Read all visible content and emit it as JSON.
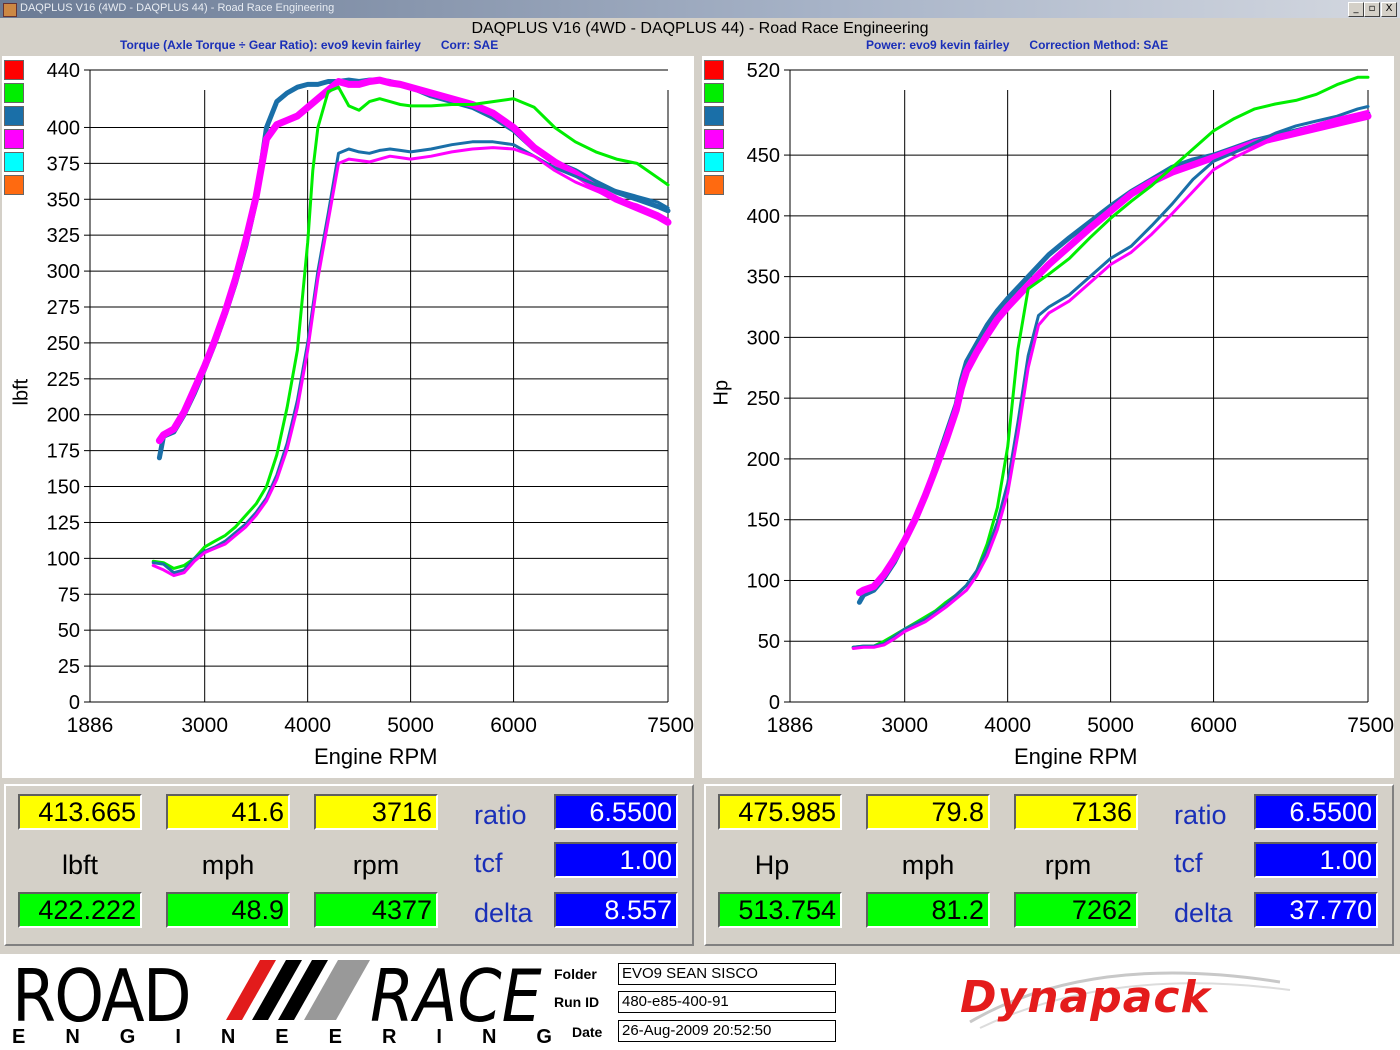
{
  "window": {
    "title": "DAQPLUS V16 (4WD - DAQPLUS 44) - Road Race Engineering",
    "title_text": "DAQPLUS V16 (4WD - DAQPLUS 44) - Road Race Engineering",
    "minimize": "_",
    "restore": "▫",
    "close": "X"
  },
  "left_panel": {
    "subtitle": "Torque (Axle Torque ÷ Gear Ratio): evo9 kevin fairley      Corr: SAE",
    "swatches": [
      "#ff0000",
      "#00ee00",
      "#1a6fa8",
      "#ff00ff",
      "#00ffff",
      "#ff6a10"
    ],
    "readout": {
      "top_values": [
        "413.665",
        "41.6",
        "3716"
      ],
      "units": [
        "lbft",
        "mph",
        "rpm"
      ],
      "bottom_values": [
        "422.222",
        "48.9",
        "4377"
      ],
      "params": [
        "ratio",
        "tcf",
        "delta"
      ],
      "param_values": [
        "6.5500",
        "1.00",
        "8.557"
      ]
    }
  },
  "right_panel": {
    "subtitle": "Power: evo9 kevin fairley      Correction Method: SAE",
    "swatches": [
      "#ff0000",
      "#00ee00",
      "#1a6fa8",
      "#ff00ff",
      "#00ffff",
      "#ff6a10"
    ],
    "readout": {
      "top_values": [
        "475.985",
        "79.8",
        "7136"
      ],
      "units": [
        "Hp",
        "mph",
        "rpm"
      ],
      "bottom_values": [
        "513.754",
        "81.2",
        "7262"
      ],
      "params": [
        "ratio",
        "tcf",
        "delta"
      ],
      "param_values": [
        "6.5500",
        "1.00",
        "37.770"
      ]
    }
  },
  "footer": {
    "logo_road": "ROAD",
    "logo_race": "RACE",
    "logo_engineering": [
      "E",
      "N",
      "G",
      "I",
      "N",
      "E",
      "E",
      "R",
      "I",
      "N",
      "G"
    ],
    "folder_label": "Folder",
    "folder_value": "EVO9 SEAN SISCO",
    "runid_label": "Run ID",
    "runid_value": "480-e85-400-91",
    "date_label": "Date",
    "date_value": "26-Aug-2009  20:52:50",
    "dynapack": "Dynapack"
  },
  "chart_data": [
    {
      "type": "line",
      "xlabel": "Engine RPM",
      "ylabel": "lbft",
      "xlim": [
        1886,
        7500
      ],
      "ylim": [
        0,
        440
      ],
      "x_ticks": [
        1886,
        3000,
        4000,
        5000,
        6000,
        7500
      ],
      "y_ticks": [
        0,
        25,
        50,
        75,
        100,
        125,
        150,
        175,
        200,
        225,
        250,
        275,
        300,
        325,
        350,
        375,
        400,
        440
      ],
      "series": [
        {
          "color": "#1a6fa8",
          "width": 5,
          "x": [
            2560,
            2600,
            2700,
            2800,
            2900,
            3000,
            3100,
            3200,
            3300,
            3400,
            3500,
            3550,
            3600,
            3700,
            3800,
            3900,
            4000,
            4100,
            4200,
            4300,
            4400,
            4500,
            4600,
            4700,
            4800,
            4900,
            5000,
            5200,
            5400,
            5600,
            5800,
            6000,
            6200,
            6400,
            6600,
            6800,
            7000,
            7200,
            7400,
            7500
          ],
          "y": [
            170,
            185,
            188,
            200,
            215,
            232,
            250,
            270,
            292,
            318,
            350,
            375,
            400,
            418,
            424,
            428,
            430,
            430,
            432,
            432,
            433,
            432,
            433,
            433,
            432,
            430,
            428,
            422,
            418,
            414,
            407,
            398,
            385,
            376,
            370,
            362,
            355,
            350,
            345,
            342
          ]
        },
        {
          "color": "#ff00ff",
          "width": 7,
          "x": [
            2560,
            2600,
            2700,
            2800,
            2900,
            3000,
            3100,
            3200,
            3300,
            3400,
            3500,
            3550,
            3600,
            3700,
            3800,
            3900,
            4000,
            4100,
            4200,
            4300,
            4400,
            4500,
            4600,
            4700,
            4800,
            4900,
            5000,
            5200,
            5400,
            5600,
            5800,
            6000,
            6200,
            6400,
            6600,
            6800,
            7000,
            7200,
            7400,
            7500
          ],
          "y": [
            182,
            186,
            190,
            202,
            218,
            234,
            252,
            272,
            295,
            322,
            352,
            372,
            392,
            402,
            405,
            408,
            414,
            420,
            426,
            432,
            430,
            430,
            432,
            433,
            431,
            430,
            428,
            424,
            420,
            416,
            410,
            400,
            386,
            376,
            368,
            358,
            350,
            344,
            338,
            334
          ]
        },
        {
          "color": "#00ee00",
          "width": 3,
          "x": [
            2500,
            2600,
            2700,
            2800,
            2900,
            3000,
            3100,
            3200,
            3300,
            3400,
            3500,
            3600,
            3700,
            3800,
            3900,
            4000,
            4050,
            4100,
            4200,
            4300,
            4400,
            4500,
            4600,
            4700,
            4800,
            4900,
            5000,
            5200,
            5400,
            5600,
            5800,
            6000,
            6200,
            6400,
            6600,
            6800,
            7000,
            7200,
            7400,
            7500
          ],
          "y": [
            98,
            97,
            93,
            95,
            100,
            108,
            112,
            116,
            122,
            130,
            138,
            150,
            172,
            205,
            245,
            320,
            370,
            400,
            425,
            428,
            415,
            412,
            418,
            420,
            418,
            416,
            415,
            415,
            416,
            416,
            418,
            420,
            414,
            400,
            390,
            383,
            378,
            375,
            365,
            360
          ]
        },
        {
          "color": "#1a6fa8",
          "width": 3,
          "x": [
            2500,
            2600,
            2700,
            2800,
            2900,
            3000,
            3100,
            3200,
            3300,
            3400,
            3500,
            3600,
            3700,
            3800,
            3900,
            4000,
            4100,
            4200,
            4300,
            4400,
            4500,
            4600,
            4700,
            4800,
            4900,
            5000,
            5200,
            5400,
            5600,
            5800,
            6000,
            6200,
            6400,
            6600,
            6800,
            7000,
            7200,
            7400,
            7500
          ],
          "y": [
            97,
            96,
            90,
            92,
            100,
            105,
            108,
            112,
            118,
            124,
            132,
            142,
            158,
            180,
            210,
            250,
            300,
            340,
            382,
            385,
            383,
            382,
            384,
            385,
            384,
            383,
            385,
            388,
            390,
            390,
            388,
            380,
            372,
            366,
            360,
            356,
            352,
            348,
            344
          ]
        },
        {
          "color": "#ff00ff",
          "width": 3,
          "x": [
            2500,
            2600,
            2700,
            2800,
            2900,
            3000,
            3100,
            3200,
            3300,
            3400,
            3500,
            3600,
            3700,
            3800,
            3900,
            4000,
            4100,
            4200,
            4300,
            4400,
            4500,
            4600,
            4700,
            4800,
            4900,
            5000,
            5200,
            5400,
            5600,
            5800,
            6000,
            6200,
            6400,
            6600,
            6800,
            7000,
            7200,
            7400,
            7500
          ],
          "y": [
            95,
            92,
            88,
            90,
            98,
            104,
            107,
            110,
            116,
            122,
            130,
            140,
            155,
            176,
            205,
            245,
            295,
            335,
            375,
            378,
            377,
            376,
            378,
            380,
            379,
            378,
            380,
            383,
            385,
            386,
            385,
            380,
            370,
            362,
            356,
            350,
            346,
            340,
            336
          ]
        }
      ]
    },
    {
      "type": "line",
      "xlabel": "Engine RPM",
      "ylabel": "Hp",
      "xlim": [
        1886,
        7500
      ],
      "ylim": [
        0,
        520
      ],
      "x_ticks": [
        1886,
        3000,
        4000,
        5000,
        6000,
        7500
      ],
      "y_ticks": [
        0,
        50,
        100,
        150,
        200,
        250,
        300,
        350,
        400,
        450,
        520
      ],
      "series": [
        {
          "color": "#1a6fa8",
          "width": 5,
          "x": [
            2560,
            2600,
            2700,
            2800,
            2900,
            3000,
            3100,
            3200,
            3300,
            3400,
            3500,
            3550,
            3600,
            3700,
            3800,
            3900,
            4000,
            4200,
            4400,
            4600,
            4800,
            5000,
            5200,
            5400,
            5600,
            5800,
            6000,
            6200,
            6400,
            6600,
            6800,
            7000,
            7200,
            7400,
            7500
          ],
          "y": [
            82,
            88,
            92,
            102,
            115,
            132,
            150,
            170,
            195,
            220,
            245,
            265,
            280,
            295,
            310,
            322,
            332,
            350,
            368,
            382,
            395,
            408,
            420,
            430,
            440,
            446,
            450,
            456,
            462,
            466,
            470,
            474,
            478,
            482,
            484
          ]
        },
        {
          "color": "#ff00ff",
          "width": 7,
          "x": [
            2560,
            2600,
            2700,
            2800,
            2900,
            3000,
            3100,
            3200,
            3300,
            3400,
            3500,
            3550,
            3600,
            3700,
            3800,
            3900,
            4000,
            4200,
            4400,
            4600,
            4800,
            5000,
            5200,
            5400,
            5600,
            5800,
            6000,
            6200,
            6400,
            6600,
            6800,
            7000,
            7200,
            7400,
            7500
          ],
          "y": [
            90,
            92,
            95,
            105,
            118,
            133,
            150,
            170,
            192,
            215,
            240,
            258,
            272,
            288,
            302,
            315,
            325,
            343,
            360,
            375,
            390,
            404,
            418,
            428,
            436,
            442,
            448,
            454,
            460,
            464,
            468,
            472,
            476,
            480,
            482
          ]
        },
        {
          "color": "#00ee00",
          "width": 3,
          "x": [
            2500,
            2600,
            2700,
            2800,
            2900,
            3000,
            3100,
            3200,
            3300,
            3400,
            3500,
            3600,
            3700,
            3800,
            3900,
            4000,
            4050,
            4100,
            4200,
            4400,
            4600,
            4800,
            5000,
            5200,
            5400,
            5600,
            5800,
            6000,
            6200,
            6400,
            6600,
            6800,
            7000,
            7200,
            7400,
            7500
          ],
          "y": [
            45,
            46,
            46,
            50,
            55,
            60,
            65,
            70,
            75,
            82,
            88,
            96,
            108,
            130,
            160,
            210,
            250,
            290,
            340,
            352,
            365,
            382,
            398,
            412,
            425,
            440,
            455,
            470,
            480,
            488,
            492,
            495,
            500,
            508,
            514,
            514
          ]
        },
        {
          "color": "#1a6fa8",
          "width": 3,
          "x": [
            2500,
            2600,
            2700,
            2800,
            2900,
            3000,
            3100,
            3200,
            3300,
            3400,
            3500,
            3600,
            3700,
            3800,
            3900,
            4000,
            4100,
            4200,
            4300,
            4400,
            4600,
            4800,
            5000,
            5200,
            5400,
            5600,
            5800,
            6000,
            6200,
            6400,
            6600,
            6800,
            7000,
            7200,
            7400,
            7500
          ],
          "y": [
            45,
            46,
            46,
            48,
            54,
            60,
            64,
            68,
            74,
            80,
            88,
            96,
            108,
            125,
            148,
            180,
            230,
            285,
            318,
            325,
            335,
            350,
            365,
            375,
            392,
            410,
            430,
            445,
            452,
            460,
            468,
            474,
            478,
            482,
            488,
            490
          ]
        },
        {
          "color": "#ff00ff",
          "width": 3,
          "x": [
            2500,
            2600,
            2700,
            2800,
            2900,
            3000,
            3100,
            3200,
            3300,
            3400,
            3500,
            3600,
            3700,
            3800,
            3900,
            4000,
            4100,
            4200,
            4300,
            4400,
            4600,
            4800,
            5000,
            5200,
            5400,
            5600,
            5800,
            6000,
            6200,
            6400,
            6600,
            6800,
            7000,
            7200,
            7400,
            7500
          ],
          "y": [
            44,
            45,
            45,
            47,
            52,
            58,
            62,
            66,
            72,
            78,
            85,
            92,
            104,
            120,
            142,
            172,
            220,
            275,
            310,
            320,
            330,
            345,
            360,
            370,
            385,
            402,
            420,
            438,
            448,
            456,
            464,
            470,
            475,
            480,
            484,
            486
          ]
        }
      ]
    }
  ]
}
